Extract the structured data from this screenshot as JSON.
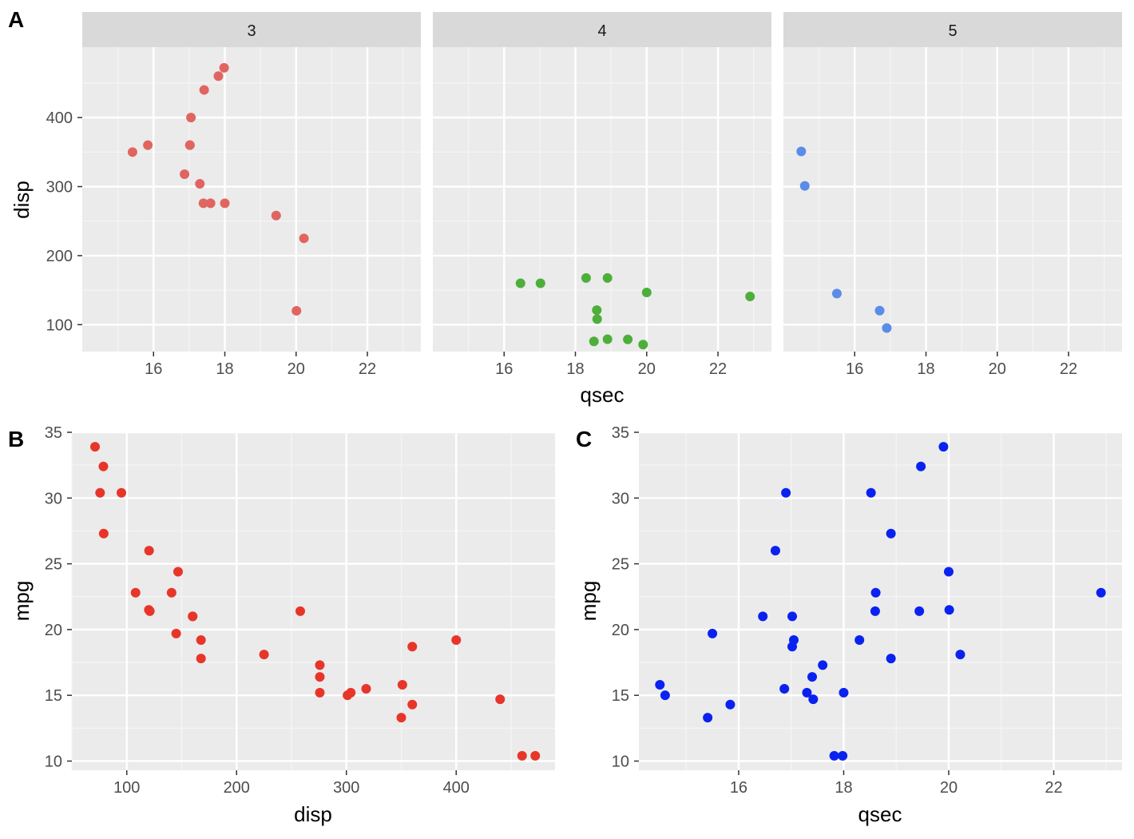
{
  "colors": {
    "panel_bg": "#ebebeb",
    "grid_major": "#ffffff",
    "grid_minor": "#f5f5f5",
    "strip_bg": "#d9d9d9",
    "tick_mark": "#333333",
    "gear3": "#e06560",
    "gear4": "#4daf3a",
    "gear5": "#5a8ce8",
    "plotB_points": "#e8352a",
    "plotC_points": "#0a22f0"
  },
  "chart_data": [
    {
      "id": "A",
      "type": "scatter",
      "tag": "A",
      "facet_by": "gear",
      "xlabel": "qsec",
      "ylabel": "disp",
      "xlim": [
        14.0,
        23.5
      ],
      "ylim": [
        61,
        502
      ],
      "x_ticks": [
        16,
        18,
        20,
        22
      ],
      "y_ticks": [
        100,
        200,
        300,
        400
      ],
      "x_tick_labels": [
        "16",
        "18",
        "20",
        "22"
      ],
      "y_tick_labels": [
        "100",
        "200",
        "300",
        "400"
      ],
      "grid": true,
      "panels": [
        {
          "strip": "3",
          "points": [
            {
              "x": 17.02,
              "y": 360
            },
            {
              "x": 19.44,
              "y": 258
            },
            {
              "x": 17.02,
              "y": 360
            },
            {
              "x": 15.84,
              "y": 360
            },
            {
              "x": 20.01,
              "y": 120.1
            },
            {
              "x": 17.4,
              "y": 275.8
            },
            {
              "x": 17.6,
              "y": 275.8
            },
            {
              "x": 18.0,
              "y": 275.8
            },
            {
              "x": 17.98,
              "y": 472
            },
            {
              "x": 17.82,
              "y": 460
            },
            {
              "x": 17.42,
              "y": 440
            },
            {
              "x": 20.22,
              "y": 225
            },
            {
              "x": 15.41,
              "y": 350
            },
            {
              "x": 16.87,
              "y": 318
            },
            {
              "x": 17.3,
              "y": 304
            },
            {
              "x": 17.05,
              "y": 400
            }
          ]
        },
        {
          "strip": "4",
          "points": [
            {
              "x": 16.46,
              "y": 160
            },
            {
              "x": 17.02,
              "y": 160
            },
            {
              "x": 18.61,
              "y": 108
            },
            {
              "x": 20.0,
              "y": 146.7
            },
            {
              "x": 22.9,
              "y": 140.8
            },
            {
              "x": 18.3,
              "y": 167.6
            },
            {
              "x": 18.9,
              "y": 167.6
            },
            {
              "x": 19.47,
              "y": 78.7
            },
            {
              "x": 18.52,
              "y": 75.7
            },
            {
              "x": 19.9,
              "y": 71.1
            },
            {
              "x": 18.9,
              "y": 79
            },
            {
              "x": 18.6,
              "y": 121
            }
          ]
        },
        {
          "strip": "5",
          "points": [
            {
              "x": 16.7,
              "y": 120.3
            },
            {
              "x": 16.9,
              "y": 95.1
            },
            {
              "x": 14.5,
              "y": 351
            },
            {
              "x": 15.5,
              "y": 145
            },
            {
              "x": 14.6,
              "y": 301
            }
          ]
        }
      ]
    },
    {
      "id": "B",
      "type": "scatter",
      "tag": "B",
      "xlabel": "disp",
      "ylabel": "mpg",
      "xlim": [
        50,
        490
      ],
      "ylim": [
        9.3,
        35.0
      ],
      "x_ticks": [
        100,
        200,
        300,
        400
      ],
      "y_ticks": [
        10,
        15,
        20,
        25,
        30,
        35
      ],
      "x_tick_labels": [
        "100",
        "200",
        "300",
        "400"
      ],
      "y_tick_labels": [
        "10",
        "15",
        "20",
        "25",
        "30",
        "35"
      ],
      "grid": true,
      "points": [
        {
          "x": 160,
          "y": 21
        },
        {
          "x": 160,
          "y": 21
        },
        {
          "x": 108,
          "y": 22.8
        },
        {
          "x": 258,
          "y": 21.4
        },
        {
          "x": 360,
          "y": 18.7
        },
        {
          "x": 225,
          "y": 18.1
        },
        {
          "x": 360,
          "y": 14.3
        },
        {
          "x": 146.7,
          "y": 24.4
        },
        {
          "x": 140.8,
          "y": 22.8
        },
        {
          "x": 167.6,
          "y": 19.2
        },
        {
          "x": 167.6,
          "y": 17.8
        },
        {
          "x": 275.8,
          "y": 16.4
        },
        {
          "x": 275.8,
          "y": 17.3
        },
        {
          "x": 275.8,
          "y": 15.2
        },
        {
          "x": 472,
          "y": 10.4
        },
        {
          "x": 460,
          "y": 10.4
        },
        {
          "x": 440,
          "y": 14.7
        },
        {
          "x": 78.7,
          "y": 32.4
        },
        {
          "x": 75.7,
          "y": 30.4
        },
        {
          "x": 71.1,
          "y": 33.9
        },
        {
          "x": 120.1,
          "y": 21.5
        },
        {
          "x": 318,
          "y": 15.5
        },
        {
          "x": 304,
          "y": 15.2
        },
        {
          "x": 350,
          "y": 13.3
        },
        {
          "x": 400,
          "y": 19.2
        },
        {
          "x": 79,
          "y": 27.3
        },
        {
          "x": 120.3,
          "y": 26
        },
        {
          "x": 95.1,
          "y": 30.4
        },
        {
          "x": 351,
          "y": 15.8
        },
        {
          "x": 145,
          "y": 19.7
        },
        {
          "x": 301,
          "y": 15
        },
        {
          "x": 121,
          "y": 21.4
        }
      ]
    },
    {
      "id": "C",
      "type": "scatter",
      "tag": "C",
      "xlabel": "qsec",
      "ylabel": "mpg",
      "xlim": [
        14.1,
        23.3
      ],
      "ylim": [
        9.3,
        35.0
      ],
      "x_ticks": [
        16,
        18,
        20,
        22
      ],
      "y_ticks": [
        10,
        15,
        20,
        25,
        30,
        35
      ],
      "x_tick_labels": [
        "16",
        "18",
        "20",
        "22"
      ],
      "y_tick_labels": [
        "10",
        "15",
        "20",
        "25",
        "30",
        "35"
      ],
      "grid": true,
      "points": [
        {
          "x": 16.46,
          "y": 21
        },
        {
          "x": 17.02,
          "y": 21
        },
        {
          "x": 18.61,
          "y": 22.8
        },
        {
          "x": 19.44,
          "y": 21.4
        },
        {
          "x": 17.02,
          "y": 18.7
        },
        {
          "x": 20.22,
          "y": 18.1
        },
        {
          "x": 15.84,
          "y": 14.3
        },
        {
          "x": 20.0,
          "y": 24.4
        },
        {
          "x": 22.9,
          "y": 22.8
        },
        {
          "x": 18.3,
          "y": 19.2
        },
        {
          "x": 18.9,
          "y": 17.8
        },
        {
          "x": 17.4,
          "y": 16.4
        },
        {
          "x": 17.6,
          "y": 17.3
        },
        {
          "x": 18.0,
          "y": 15.2
        },
        {
          "x": 17.98,
          "y": 10.4
        },
        {
          "x": 17.82,
          "y": 10.4
        },
        {
          "x": 17.42,
          "y": 14.7
        },
        {
          "x": 19.47,
          "y": 32.4
        },
        {
          "x": 18.52,
          "y": 30.4
        },
        {
          "x": 19.9,
          "y": 33.9
        },
        {
          "x": 20.01,
          "y": 21.5
        },
        {
          "x": 16.87,
          "y": 15.5
        },
        {
          "x": 17.3,
          "y": 15.2
        },
        {
          "x": 15.41,
          "y": 13.3
        },
        {
          "x": 17.05,
          "y": 19.2
        },
        {
          "x": 18.9,
          "y": 27.3
        },
        {
          "x": 16.7,
          "y": 26
        },
        {
          "x": 16.9,
          "y": 30.4
        },
        {
          "x": 14.5,
          "y": 15.8
        },
        {
          "x": 15.5,
          "y": 19.7
        },
        {
          "x": 14.6,
          "y": 15
        },
        {
          "x": 18.6,
          "y": 21.4
        }
      ]
    }
  ]
}
